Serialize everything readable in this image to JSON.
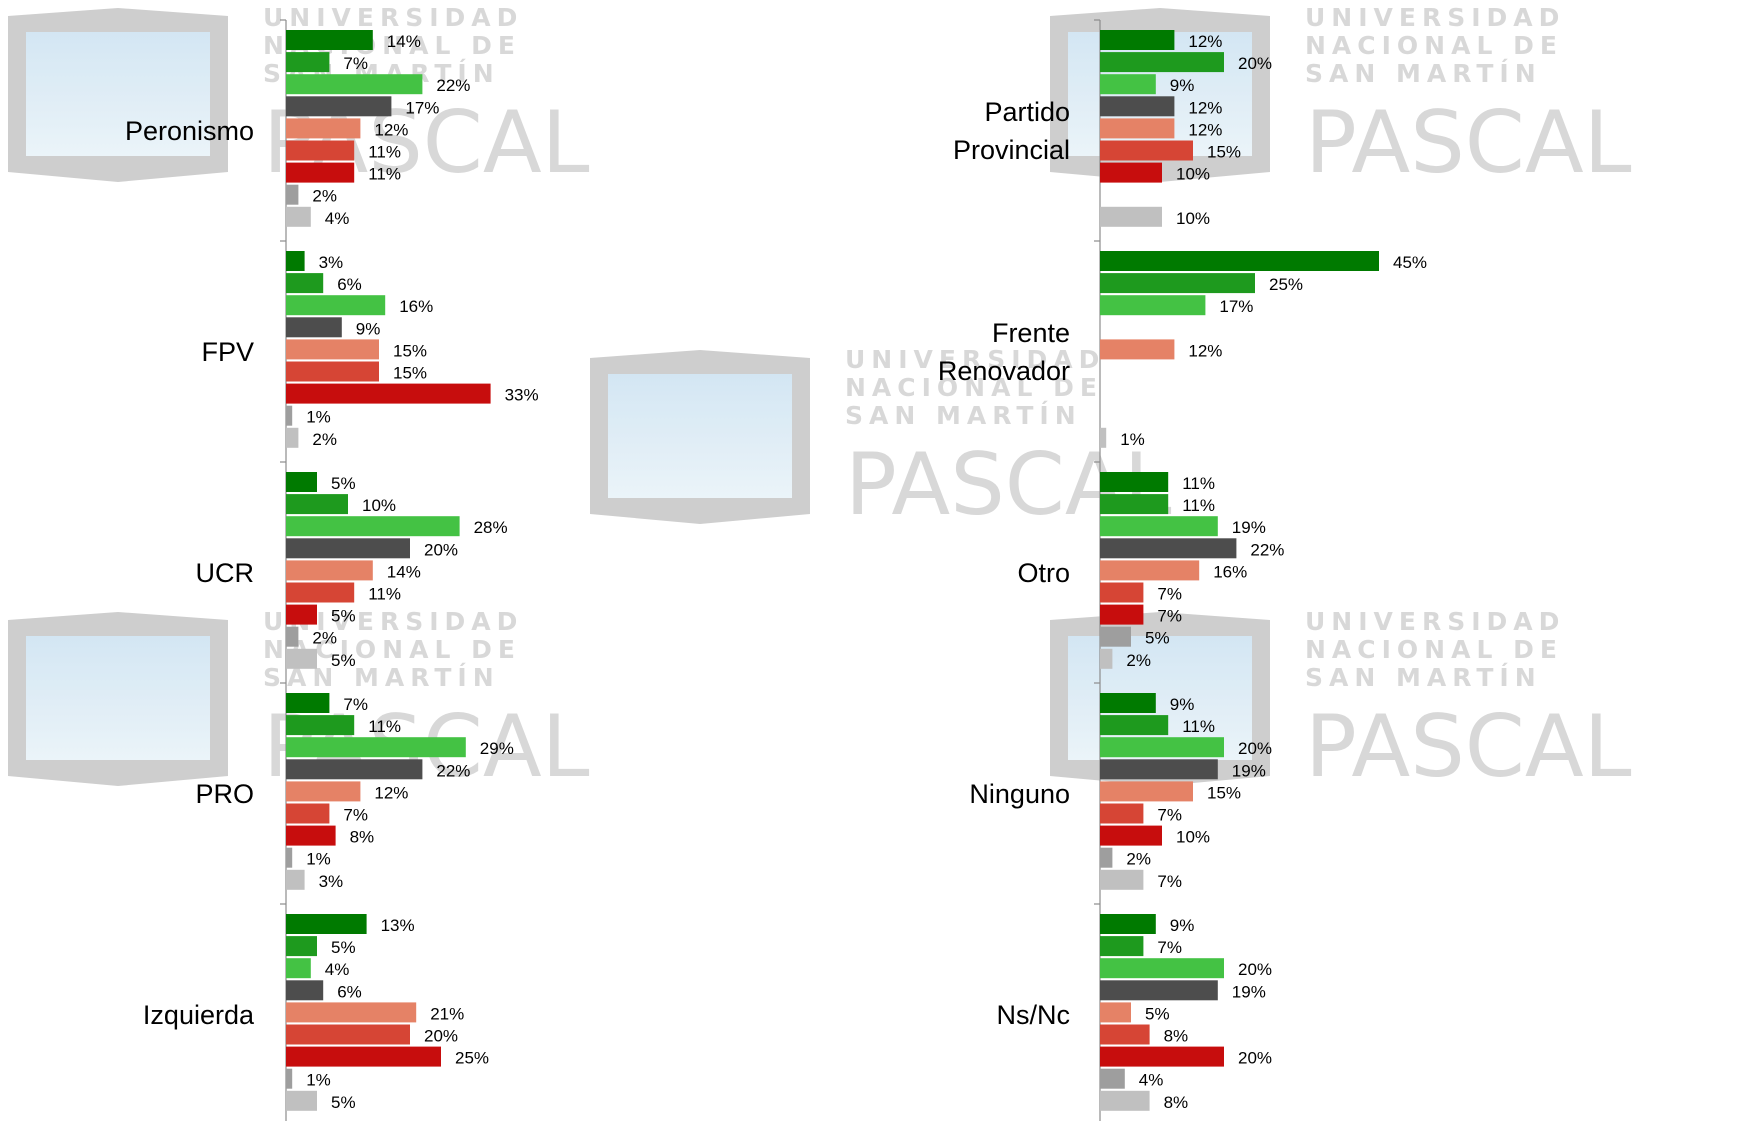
{
  "watermark": {
    "line1": "UNIVERSIDAD",
    "line2": "NACIONAL DE",
    "line3": "SAN MARTÍN",
    "brand": "PASCAL"
  },
  "chart_data": [
    {
      "type": "bar",
      "orientation": "horizontal",
      "categories": [
        "Peronismo",
        "FPV",
        "UCR",
        "PRO",
        "Izquierda"
      ],
      "series": [
        {
          "color": "#007a00",
          "values": [
            14,
            3,
            5,
            7,
            13
          ]
        },
        {
          "color": "#1e9a1e",
          "values": [
            7,
            6,
            10,
            11,
            5
          ]
        },
        {
          "color": "#44c244",
          "values": [
            22,
            16,
            28,
            29,
            4
          ]
        },
        {
          "color": "#4d4d4d",
          "values": [
            17,
            9,
            20,
            22,
            6
          ]
        },
        {
          "color": "#e58266",
          "values": [
            12,
            15,
            14,
            12,
            21
          ]
        },
        {
          "color": "#d64535",
          "values": [
            11,
            15,
            11,
            7,
            20
          ]
        },
        {
          "color": "#c70d0d",
          "values": [
            11,
            33,
            5,
            8,
            25
          ]
        },
        {
          "color": "#9e9e9e",
          "values": [
            2,
            1,
            2,
            1,
            1
          ]
        },
        {
          "color": "#c0c0c0",
          "values": [
            4,
            2,
            5,
            3,
            5
          ]
        }
      ],
      "value_labels": [
        [
          "14%",
          "7%",
          "22%",
          "17%",
          "12%",
          "11%",
          "11%",
          "2%",
          "4%"
        ],
        [
          "3%",
          "6%",
          "16%",
          "9%",
          "15%",
          "15%",
          "33%",
          "1%",
          "2%"
        ],
        [
          "5%",
          "10%",
          "28%",
          "20%",
          "14%",
          "11%",
          "5%",
          "2%",
          "5%"
        ],
        [
          "7%",
          "11%",
          "29%",
          "22%",
          "12%",
          "7%",
          "8%",
          "1%",
          "3%"
        ],
        [
          "13%",
          "5%",
          "4%",
          "6%",
          "21%",
          "20%",
          "25%",
          "1%",
          "5%"
        ]
      ],
      "xlim": [
        0,
        100
      ],
      "grid": false,
      "legend": "none"
    },
    {
      "type": "bar",
      "orientation": "horizontal",
      "categories": [
        "Partido\nProvincial",
        "Frente\nRenovador",
        "Otro",
        "Ninguno",
        "Ns/Nc"
      ],
      "series": [
        {
          "color": "#007a00",
          "values": [
            12,
            45,
            11,
            9,
            9
          ]
        },
        {
          "color": "#1e9a1e",
          "values": [
            20,
            25,
            11,
            11,
            7
          ]
        },
        {
          "color": "#44c244",
          "values": [
            9,
            17,
            19,
            20,
            20
          ]
        },
        {
          "color": "#4d4d4d",
          "values": [
            12,
            null,
            22,
            19,
            19
          ]
        },
        {
          "color": "#e58266",
          "values": [
            12,
            12,
            16,
            15,
            5
          ]
        },
        {
          "color": "#d64535",
          "values": [
            15,
            null,
            7,
            7,
            8
          ]
        },
        {
          "color": "#c70d0d",
          "values": [
            10,
            null,
            7,
            10,
            20
          ]
        },
        {
          "color": "#9e9e9e",
          "values": [
            null,
            null,
            5,
            2,
            4
          ]
        },
        {
          "color": "#c0c0c0",
          "values": [
            10,
            1,
            2,
            7,
            8
          ]
        }
      ],
      "value_labels": [
        [
          "12%",
          "20%",
          "9%",
          "12%",
          "12%",
          "15%",
          "10%",
          "",
          "10%"
        ],
        [
          "45%",
          "25%",
          "17%",
          "",
          "12%",
          "",
          "",
          "",
          "1%"
        ],
        [
          "11%",
          "11%",
          "19%",
          "22%",
          "16%",
          "7%",
          "7%",
          "5%",
          "2%"
        ],
        [
          "9%",
          "11%",
          "20%",
          "19%",
          "15%",
          "7%",
          "10%",
          "2%",
          "7%"
        ],
        [
          "9%",
          "7%",
          "20%",
          "19%",
          "5%",
          "8%",
          "20%",
          "4%",
          "8%"
        ]
      ],
      "xlim": [
        0,
        100
      ],
      "grid": false,
      "legend": "none"
    }
  ]
}
